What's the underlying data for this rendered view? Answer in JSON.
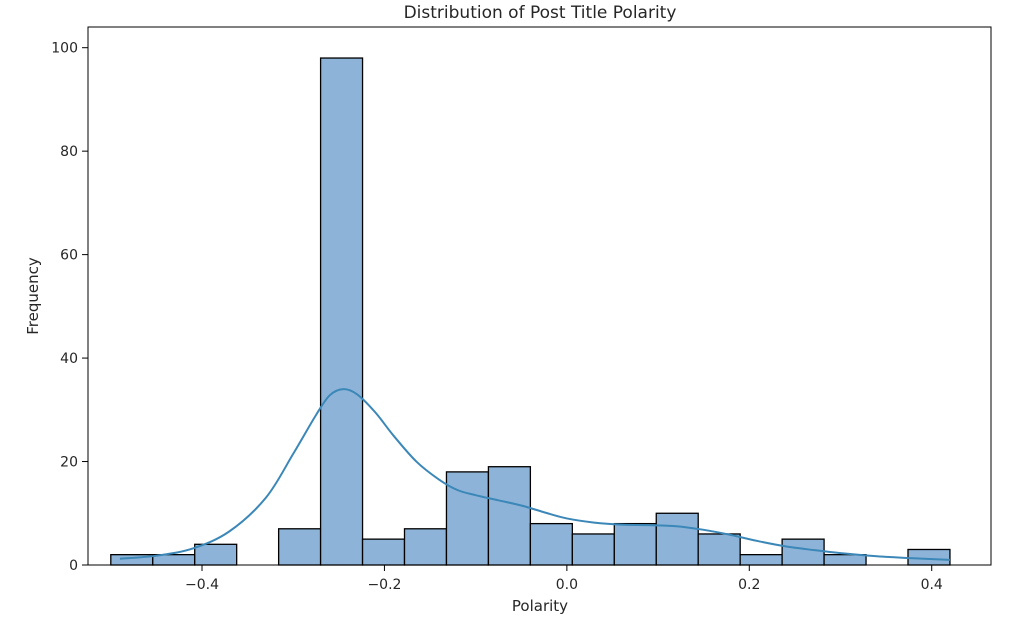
{
  "chart_data": {
    "type": "bar",
    "title": "Distribution of Post Title Polarity",
    "xlabel": "Polarity",
    "ylabel": "Frequency",
    "xlim": [
      -0.525,
      0.465
    ],
    "ylim": [
      0,
      104
    ],
    "xticks": [
      -0.4,
      -0.2,
      0.0,
      0.2,
      0.4
    ],
    "xtick_labels": [
      "−0.4",
      "−0.2",
      "0.0",
      "0.2",
      "0.4"
    ],
    "yticks": [
      0,
      20,
      40,
      60,
      80,
      100
    ],
    "ytick_labels": [
      "0",
      "20",
      "40",
      "60",
      "80",
      "100"
    ],
    "grid": false,
    "bar_fill": "#8db4d8",
    "bar_edge": "#000000",
    "kde_color": "#3b87b8",
    "bins": [
      {
        "x0": -0.5,
        "x1": -0.454,
        "count": 2
      },
      {
        "x0": -0.454,
        "x1": -0.408,
        "count": 2
      },
      {
        "x0": -0.408,
        "x1": -0.362,
        "count": 4
      },
      {
        "x0": -0.362,
        "x1": -0.316,
        "count": 0
      },
      {
        "x0": -0.316,
        "x1": -0.27,
        "count": 7
      },
      {
        "x0": -0.27,
        "x1": -0.224,
        "count": 98
      },
      {
        "x0": -0.224,
        "x1": -0.178,
        "count": 5
      },
      {
        "x0": -0.178,
        "x1": -0.132,
        "count": 7
      },
      {
        "x0": -0.132,
        "x1": -0.086,
        "count": 18
      },
      {
        "x0": -0.086,
        "x1": -0.04,
        "count": 19
      },
      {
        "x0": -0.04,
        "x1": 0.006,
        "count": 8
      },
      {
        "x0": 0.006,
        "x1": 0.052,
        "count": 6
      },
      {
        "x0": 0.052,
        "x1": 0.098,
        "count": 8
      },
      {
        "x0": 0.098,
        "x1": 0.144,
        "count": 10
      },
      {
        "x0": 0.144,
        "x1": 0.19,
        "count": 6
      },
      {
        "x0": 0.19,
        "x1": 0.236,
        "count": 2
      },
      {
        "x0": 0.236,
        "x1": 0.282,
        "count": 5
      },
      {
        "x0": 0.282,
        "x1": 0.328,
        "count": 2
      },
      {
        "x0": 0.328,
        "x1": 0.374,
        "count": 0
      },
      {
        "x0": 0.374,
        "x1": 0.42,
        "count": 3
      }
    ],
    "kde": [
      {
        "x": -0.49,
        "y": 1.2
      },
      {
        "x": -0.45,
        "y": 1.8
      },
      {
        "x": -0.41,
        "y": 3.2
      },
      {
        "x": -0.37,
        "y": 6.5
      },
      {
        "x": -0.33,
        "y": 13
      },
      {
        "x": -0.3,
        "y": 21.5
      },
      {
        "x": -0.275,
        "y": 29
      },
      {
        "x": -0.26,
        "y": 32.8
      },
      {
        "x": -0.245,
        "y": 34
      },
      {
        "x": -0.23,
        "y": 33
      },
      {
        "x": -0.21,
        "y": 29.5
      },
      {
        "x": -0.19,
        "y": 25
      },
      {
        "x": -0.165,
        "y": 20
      },
      {
        "x": -0.14,
        "y": 16.5
      },
      {
        "x": -0.12,
        "y": 14.5
      },
      {
        "x": -0.1,
        "y": 13.5
      },
      {
        "x": -0.075,
        "y": 12.5
      },
      {
        "x": -0.05,
        "y": 11.5
      },
      {
        "x": -0.025,
        "y": 10.2
      },
      {
        "x": 0.0,
        "y": 9
      },
      {
        "x": 0.03,
        "y": 8.2
      },
      {
        "x": 0.06,
        "y": 7.8
      },
      {
        "x": 0.09,
        "y": 7.7
      },
      {
        "x": 0.12,
        "y": 7.5
      },
      {
        "x": 0.15,
        "y": 6.8
      },
      {
        "x": 0.18,
        "y": 5.8
      },
      {
        "x": 0.21,
        "y": 4.6
      },
      {
        "x": 0.24,
        "y": 3.6
      },
      {
        "x": 0.27,
        "y": 2.9
      },
      {
        "x": 0.3,
        "y": 2.3
      },
      {
        "x": 0.34,
        "y": 1.7
      },
      {
        "x": 0.38,
        "y": 1.3
      },
      {
        "x": 0.42,
        "y": 1.0
      }
    ]
  }
}
